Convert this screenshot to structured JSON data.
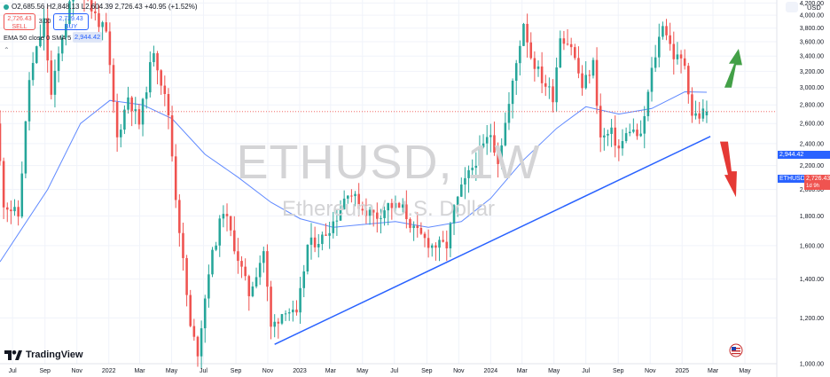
{
  "header": {
    "ohlc_text": "O2,685.56  H2,848.13  L2,604.39  2,726.43  +40.95 (+1.52%)",
    "sell_price": "2,726.43",
    "sell_label": "SELL",
    "spread": "3.00",
    "buy_price": "2,729.43",
    "buy_label": "BUY",
    "ema_legend": "EMA 50 close 0 SMA 5",
    "ema_value": "2,944.42",
    "currency": "USD"
  },
  "watermark": {
    "symbol": "ETHUSD, 1W",
    "description": "Ethereum / U.S. Dollar"
  },
  "branding": {
    "logo_text": "TradingView"
  },
  "price_tags": {
    "ema": "2,944.42",
    "symbol": "ETHUSD",
    "last_price": "2,726.43",
    "countdown": "1d 9h"
  },
  "colors": {
    "up": "#26a69a",
    "down": "#ef5350",
    "ema": "#2962ff",
    "trendline": "#2962ff",
    "arrow_up": "#43a047",
    "arrow_down": "#e53935",
    "grid": "#f0f3fa",
    "axis_text": "#131722"
  },
  "chart_data": {
    "type": "candlestick",
    "timeframe": "1W",
    "y_axis": {
      "scale": "log",
      "ylim": [
        1000,
        4250
      ],
      "ticks": [
        1000,
        1200,
        1400,
        1600,
        1800,
        2000,
        2200,
        2400,
        2600,
        2800,
        3000,
        3200,
        3400,
        3600,
        3800,
        4000,
        4200
      ],
      "tick_labels": [
        "1,000.00",
        "1,200.00",
        "1,400.00",
        "1,600.00",
        "1,800.00",
        "2,000.00",
        "2,200.00",
        "2,400.00",
        "2,600.00",
        "2,800.00",
        "3,000.00",
        "3,200.00",
        "3,400.00",
        "3,600.00",
        "3,800.00",
        "4,000.00",
        "4,200.00"
      ]
    },
    "x_axis": {
      "type": "date",
      "range": [
        "2021-06-07",
        "2025-07-01"
      ],
      "ticks": [
        {
          "date": "2021-07-01",
          "label": "Jul"
        },
        {
          "date": "2021-09-01",
          "label": "Sep"
        },
        {
          "date": "2021-11-01",
          "label": "Nov"
        },
        {
          "date": "2022-01-01",
          "label": "2022"
        },
        {
          "date": "2022-03-01",
          "label": "Mar"
        },
        {
          "date": "2022-05-01",
          "label": "May"
        },
        {
          "date": "2022-07-01",
          "label": "Jul"
        },
        {
          "date": "2022-09-01",
          "label": "Sep"
        },
        {
          "date": "2022-11-01",
          "label": "Nov"
        },
        {
          "date": "2023-01-01",
          "label": "2023"
        },
        {
          "date": "2023-03-01",
          "label": "Mar"
        },
        {
          "date": "2023-05-01",
          "label": "May"
        },
        {
          "date": "2023-07-01",
          "label": "Jul"
        },
        {
          "date": "2023-09-01",
          "label": "Sep"
        },
        {
          "date": "2023-11-01",
          "label": "Nov"
        },
        {
          "date": "2024-01-01",
          "label": "2024"
        },
        {
          "date": "2024-03-01",
          "label": "Mar"
        },
        {
          "date": "2024-05-01",
          "label": "May"
        },
        {
          "date": "2024-07-01",
          "label": "Jul"
        },
        {
          "date": "2024-09-01",
          "label": "Sep"
        },
        {
          "date": "2024-11-01",
          "label": "Nov"
        },
        {
          "date": "2025-01-01",
          "label": "2025"
        },
        {
          "date": "2025-03-01",
          "label": "Mar"
        },
        {
          "date": "2025-05-01",
          "label": "May"
        }
      ]
    },
    "price_path": [
      [
        "2021-06-07",
        2600
      ],
      [
        "2021-06-21",
        1900
      ],
      [
        "2021-07-19",
        1800
      ],
      [
        "2021-08-09",
        3100
      ],
      [
        "2021-09-06",
        3900
      ],
      [
        "2021-09-20",
        2900
      ],
      [
        "2021-10-11",
        3700
      ],
      [
        "2021-11-08",
        4650
      ],
      [
        "2021-12-06",
        4100
      ],
      [
        "2022-01-03",
        3700
      ],
      [
        "2022-01-24",
        2450
      ],
      [
        "2022-02-14",
        2900
      ],
      [
        "2022-03-07",
        2600
      ],
      [
        "2022-04-04",
        3500
      ],
      [
        "2022-05-02",
        2700
      ],
      [
        "2022-05-16",
        1950
      ],
      [
        "2022-06-13",
        1150
      ],
      [
        "2022-06-27",
        1050
      ],
      [
        "2022-07-18",
        1450
      ],
      [
        "2022-08-15",
        1850
      ],
      [
        "2022-09-05",
        1600
      ],
      [
        "2022-10-03",
        1320
      ],
      [
        "2022-10-31",
        1570
      ],
      [
        "2022-11-14",
        1150
      ],
      [
        "2022-12-12",
        1250
      ],
      [
        "2023-01-02",
        1200
      ],
      [
        "2023-01-23",
        1600
      ],
      [
        "2023-02-20",
        1650
      ],
      [
        "2023-03-20",
        1800
      ],
      [
        "2023-04-10",
        2000
      ],
      [
        "2023-05-08",
        1850
      ],
      [
        "2023-06-05",
        1800
      ],
      [
        "2023-06-26",
        1880
      ],
      [
        "2023-07-24",
        1850
      ],
      [
        "2023-08-14",
        1700
      ],
      [
        "2023-09-18",
        1600
      ],
      [
        "2023-10-16",
        1600
      ],
      [
        "2023-10-30",
        1850
      ],
      [
        "2023-11-13",
        2000
      ],
      [
        "2023-12-11",
        2250
      ],
      [
        "2024-01-08",
        2500
      ],
      [
        "2024-01-22",
        2250
      ],
      [
        "2024-02-12",
        2800
      ],
      [
        "2024-03-11",
        3900
      ],
      [
        "2024-03-25",
        3400
      ],
      [
        "2024-04-15",
        3100
      ],
      [
        "2024-05-06",
        2900
      ],
      [
        "2024-05-20",
        3700
      ],
      [
        "2024-06-10",
        3550
      ],
      [
        "2024-07-01",
        3000
      ],
      [
        "2024-07-22",
        3300
      ],
      [
        "2024-08-05",
        2450
      ],
      [
        "2024-08-26",
        2500
      ],
      [
        "2024-09-09",
        2350
      ],
      [
        "2024-09-30",
        2550
      ],
      [
        "2024-10-21",
        2450
      ],
      [
        "2024-11-11",
        3200
      ],
      [
        "2024-12-02",
        3900
      ],
      [
        "2024-12-23",
        3400
      ],
      [
        "2025-01-13",
        3300
      ],
      [
        "2025-01-27",
        2700
      ],
      [
        "2025-02-10",
        2680
      ],
      [
        "2025-02-17",
        2726.43
      ]
    ],
    "last_candle": {
      "date": "2025-02-17",
      "open": 2685.56,
      "high": 2848.13,
      "low": 2604.39,
      "close": 2726.43,
      "change": 40.95,
      "change_pct": 1.52
    },
    "ema_path": [
      [
        "2021-06-07",
        1500
      ],
      [
        "2021-09-06",
        2000
      ],
      [
        "2021-11-08",
        2600
      ],
      [
        "2022-01-03",
        2850
      ],
      [
        "2022-03-07",
        2800
      ],
      [
        "2022-05-02",
        2650
      ],
      [
        "2022-07-04",
        2300
      ],
      [
        "2022-09-05",
        2100
      ],
      [
        "2022-11-07",
        1900
      ],
      [
        "2023-01-02",
        1780
      ],
      [
        "2023-03-06",
        1720
      ],
      [
        "2023-05-01",
        1740
      ],
      [
        "2023-07-03",
        1760
      ],
      [
        "2023-09-04",
        1720
      ],
      [
        "2023-11-06",
        1760
      ],
      [
        "2024-01-01",
        1930
      ],
      [
        "2024-03-04",
        2250
      ],
      [
        "2024-05-06",
        2550
      ],
      [
        "2024-07-01",
        2780
      ],
      [
        "2024-09-02",
        2700
      ],
      [
        "2024-11-04",
        2760
      ],
      [
        "2025-01-06",
        2950
      ],
      [
        "2025-02-17",
        2944.42
      ]
    ],
    "trendline": [
      [
        "2022-11-14",
        1080
      ],
      [
        "2025-02-24",
        2470
      ]
    ],
    "annotations": [
      {
        "type": "arrow",
        "direction": "up",
        "color": "#43a047"
      },
      {
        "type": "arrow",
        "direction": "down",
        "color": "#e53935"
      }
    ],
    "legend": "top-left",
    "grid": true
  }
}
